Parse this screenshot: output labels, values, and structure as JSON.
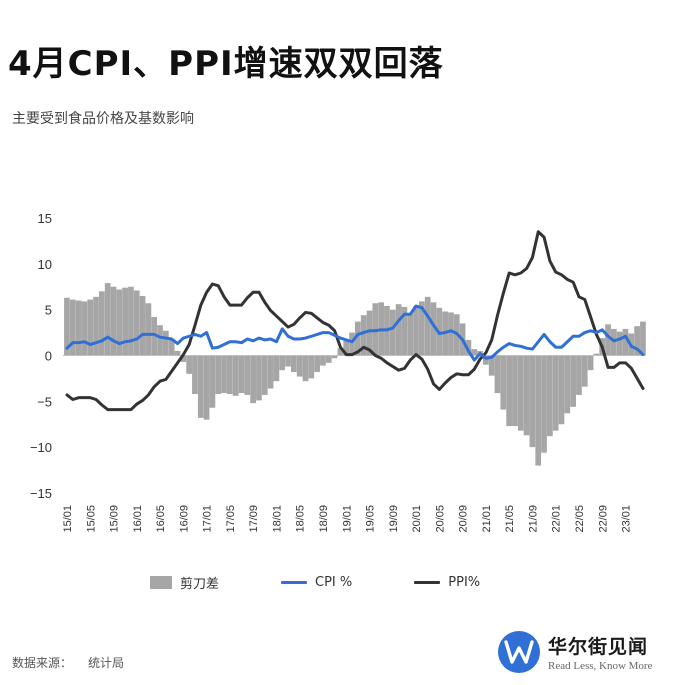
{
  "title": "4月CPI、PPI增速双双回落",
  "subtitle": "主要受到食品价格及基数影响",
  "source": {
    "label": "数据来源：",
    "value": "统计局"
  },
  "logo": {
    "name_cn": "华尔街见闻",
    "tagline": "Read Less, Know More",
    "icon": "wallstreetcn-w-logo-icon",
    "color": "#2f6fd6"
  },
  "colors": {
    "spread": "#a6a6a6",
    "cpi": "#2f6fd6",
    "ppi": "#333333"
  },
  "chart_data": {
    "type": "bar+line",
    "ylim": [
      -15,
      15
    ],
    "yticks": [
      "15",
      "10",
      "5",
      "0",
      "−5",
      "−10",
      "−15"
    ],
    "ytick_values": [
      15,
      10,
      5,
      0,
      -5,
      -10,
      -15
    ],
    "xtick_labels": [
      "15/01",
      "15/05",
      "15/09",
      "16/01",
      "16/05",
      "16/09",
      "17/01",
      "17/05",
      "17/09",
      "18/01",
      "18/05",
      "18/09",
      "19/01",
      "19/05",
      "19/09",
      "20/01",
      "20/05",
      "20/09",
      "21/01",
      "21/05",
      "21/09",
      "22/01",
      "22/05",
      "22/09",
      "23/01"
    ],
    "x_start": "2015-01",
    "x_end": "2023-04",
    "legend": [
      {
        "label": "剪刀差",
        "kind": "bar"
      },
      {
        "label": "CPI %",
        "kind": "line"
      },
      {
        "label": "PPI%",
        "kind": "line"
      }
    ],
    "series": [
      {
        "name": "CPI %",
        "values": [
          0.8,
          1.4,
          1.4,
          1.5,
          1.2,
          1.4,
          1.6,
          2.0,
          1.6,
          1.3,
          1.5,
          1.6,
          1.8,
          2.3,
          2.3,
          2.3,
          2.0,
          1.9,
          1.8,
          1.3,
          1.9,
          2.1,
          2.3,
          2.1,
          2.5,
          0.8,
          0.9,
          1.2,
          1.5,
          1.5,
          1.4,
          1.8,
          1.6,
          1.9,
          1.7,
          1.8,
          1.5,
          2.9,
          2.1,
          1.8,
          1.8,
          1.9,
          2.1,
          2.3,
          2.5,
          2.5,
          2.2,
          1.9,
          1.7,
          1.5,
          2.3,
          2.5,
          2.7,
          2.7,
          2.8,
          2.8,
          3.0,
          3.8,
          4.5,
          4.5,
          5.4,
          5.2,
          4.3,
          3.3,
          2.4,
          2.5,
          2.7,
          2.4,
          1.7,
          0.5,
          -0.5,
          0.2,
          -0.3,
          -0.2,
          0.4,
          0.9,
          1.3,
          1.1,
          1.0,
          0.8,
          0.7,
          1.5,
          2.3,
          1.5,
          0.9,
          0.9,
          1.5,
          2.1,
          2.1,
          2.5,
          2.7,
          2.5,
          2.8,
          2.1,
          1.6,
          1.8,
          2.1,
          1.0,
          0.7,
          0.1
        ]
      },
      {
        "name": "PPI%",
        "values": [
          -4.3,
          -4.8,
          -4.6,
          -4.6,
          -4.6,
          -4.8,
          -5.4,
          -5.9,
          -5.9,
          -5.9,
          -5.9,
          -5.9,
          -5.3,
          -4.9,
          -4.3,
          -3.4,
          -2.8,
          -2.6,
          -1.7,
          -0.8,
          0.1,
          1.2,
          3.3,
          5.5,
          6.9,
          7.8,
          7.6,
          6.4,
          5.5,
          5.5,
          5.5,
          6.3,
          6.9,
          6.9,
          5.8,
          4.9,
          4.3,
          3.7,
          3.1,
          3.4,
          4.1,
          4.7,
          4.6,
          4.1,
          3.6,
          3.3,
          2.7,
          0.9,
          0.1,
          0.1,
          0.4,
          0.9,
          0.6,
          0.0,
          -0.3,
          -0.8,
          -1.2,
          -1.6,
          -1.4,
          -0.5,
          0.1,
          -0.4,
          -1.5,
          -3.1,
          -3.7,
          -3.0,
          -2.4,
          -2.0,
          -2.1,
          -2.1,
          -1.5,
          -0.4,
          0.3,
          1.7,
          4.4,
          6.8,
          9.0,
          8.8,
          9.0,
          9.5,
          10.7,
          13.5,
          12.9,
          10.3,
          9.1,
          8.8,
          8.3,
          8.0,
          6.4,
          6.1,
          4.2,
          2.3,
          0.9,
          -1.3,
          -1.3,
          -0.8,
          -0.8,
          -1.4,
          -2.5,
          -3.6
        ]
      }
    ],
    "bar_series": {
      "name": "剪刀差",
      "values": [
        6.3,
        6.1,
        6.0,
        5.9,
        6.1,
        6.4,
        7.0,
        7.9,
        7.5,
        7.2,
        7.4,
        7.5,
        7.1,
        6.5,
        5.7,
        4.2,
        3.3,
        2.7,
        1.8,
        0.5,
        -0.7,
        -2.0,
        -4.2,
        -6.8,
        -7.0,
        -5.7,
        -4.2,
        -4.1,
        -4.2,
        -4.4,
        -4.1,
        -4.3,
        -5.2,
        -4.9,
        -4.3,
        -3.6,
        -2.8,
        -1.6,
        -1.2,
        -1.8,
        -2.3,
        -2.8,
        -2.5,
        -1.8,
        -1.1,
        -0.8,
        -0.3,
        0.8,
        1.6,
        2.5,
        3.7,
        4.4,
        4.9,
        5.7,
        5.8,
        5.4,
        5.0,
        5.6,
        5.3,
        4.6,
        5.4,
        5.9,
        6.4,
        5.8,
        5.2,
        4.8,
        4.7,
        4.5,
        3.5,
        1.7,
        0.7,
        0.5,
        -1.0,
        -2.2,
        -4.1,
        -5.9,
        -7.7,
        -7.7,
        -8.2,
        -8.7,
        -10.0,
        -12.0,
        -10.6,
        -8.8,
        -8.2,
        -7.5,
        -6.3,
        -5.6,
        -4.3,
        -3.4,
        -1.6,
        0.2,
        1.9,
        3.4,
        2.9,
        2.6,
        2.9,
        2.4,
        3.2,
        3.7
      ]
    }
  }
}
